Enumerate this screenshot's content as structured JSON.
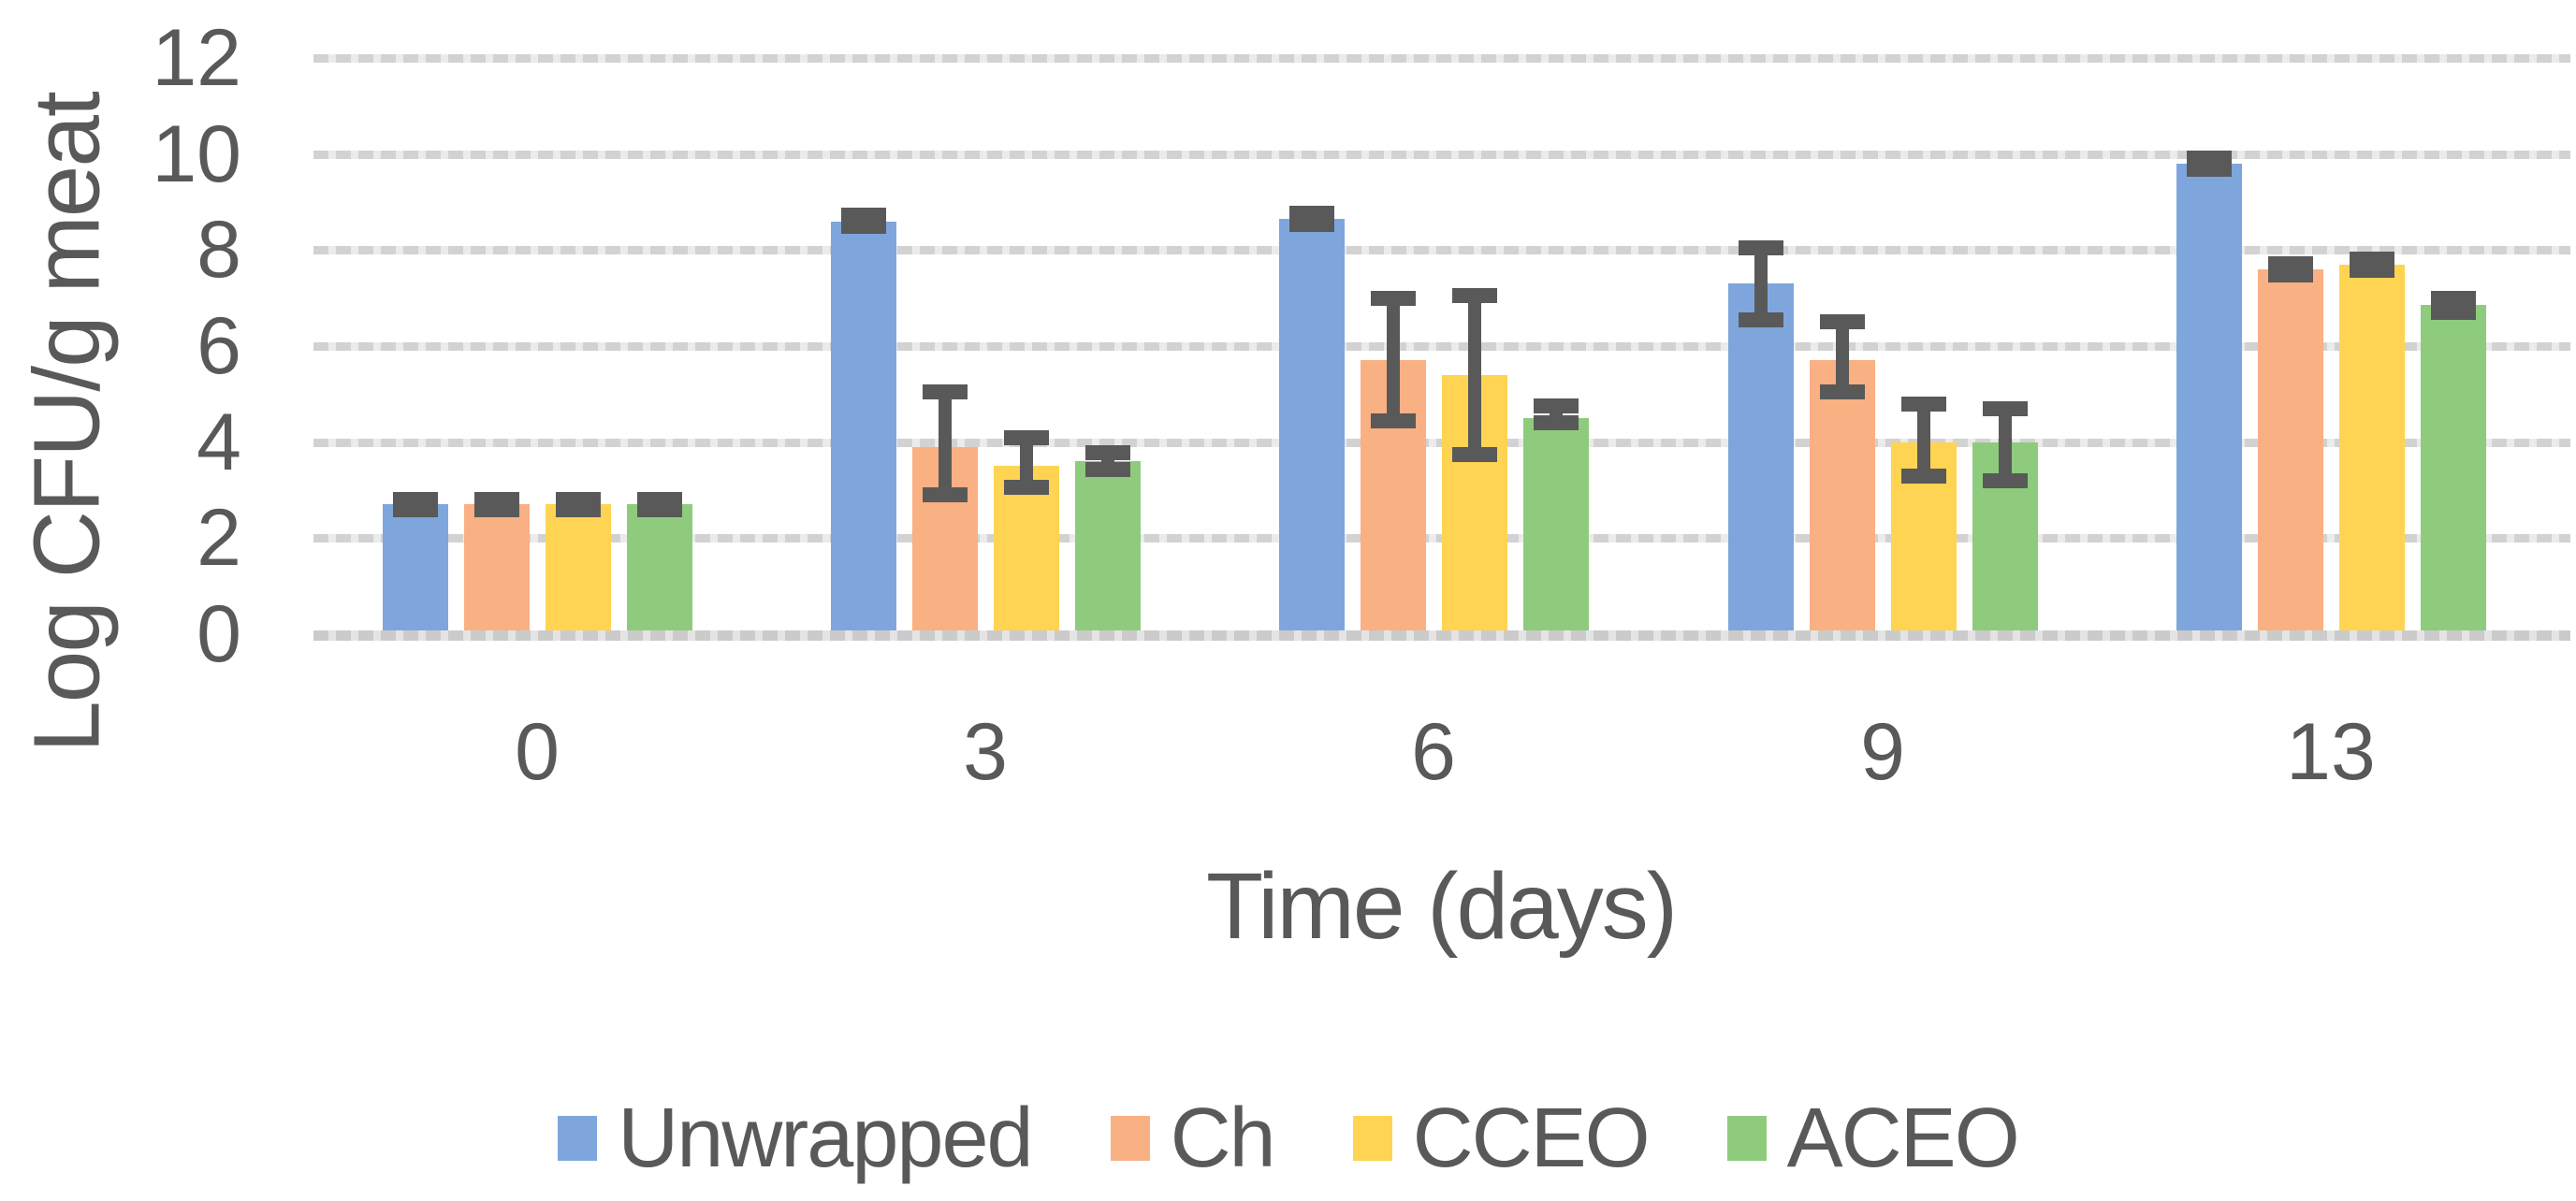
{
  "chart_data": {
    "type": "bar",
    "title": "",
    "xlabel": "Time (days)",
    "ylabel": "Log CFU/g meat",
    "categories": [
      "0",
      "3",
      "6",
      "9",
      "13"
    ],
    "y_ticks": [
      0,
      2,
      4,
      6,
      8,
      10,
      12
    ],
    "ylim": [
      0,
      12
    ],
    "grid": "horizontal-dashed",
    "legend_position": "bottom",
    "error_bars": true,
    "error_bar_color": "#595959",
    "text_color": "#595959",
    "series": [
      {
        "name": "Unwrapped",
        "color": "#7EA6DC",
        "values": [
          2.7,
          8.6,
          8.65,
          7.3,
          9.8
        ],
        "err_lo": [
          0.1,
          0.1,
          0.12,
          0.75,
          0.12
        ],
        "err_hi": [
          0.1,
          0.12,
          0.12,
          0.75,
          0.12
        ]
      },
      {
        "name": "Ch",
        "color": "#F9B083",
        "values": [
          2.7,
          3.9,
          5.7,
          5.7,
          7.6
        ],
        "err_lo": [
          0.1,
          1.0,
          1.25,
          0.65,
          0.12
        ],
        "err_hi": [
          0.1,
          1.15,
          1.3,
          0.8,
          0.12
        ]
      },
      {
        "name": "CCEO",
        "color": "#FFD452",
        "values": [
          2.7,
          3.5,
          5.4,
          4.0,
          7.7
        ],
        "err_lo": [
          0.1,
          0.45,
          1.65,
          0.7,
          0.12
        ],
        "err_hi": [
          0.1,
          0.6,
          1.65,
          0.8,
          0.12
        ]
      },
      {
        "name": "ACEO",
        "color": "#8FCB7D",
        "values": [
          2.7,
          3.6,
          4.5,
          4.0,
          6.85
        ],
        "err_lo": [
          0.1,
          0.18,
          0.1,
          0.8,
          0.15
        ],
        "err_hi": [
          0.1,
          0.18,
          0.25,
          0.7,
          0.15
        ]
      }
    ]
  }
}
